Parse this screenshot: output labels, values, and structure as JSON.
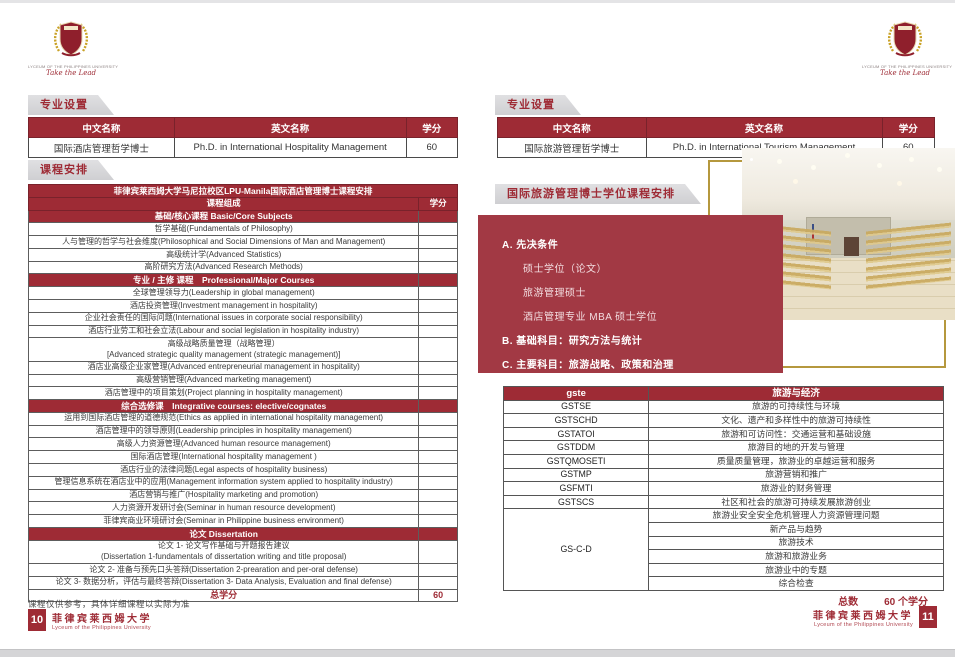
{
  "colors": {
    "primary_red": "#9e2b35",
    "box_red": "#a23944",
    "gold_frame": "#b5983e",
    "tab_gray": "#d9d9db"
  },
  "left_page": {
    "logo": {
      "caption": "LYCEUM OF THE PHILIPPINES UNIVERSITY",
      "tagline": "Take the Lead"
    },
    "program_section": {
      "tab": "专业设置",
      "headers": [
        "中文名称",
        "英文名称",
        "学分"
      ],
      "row": {
        "cn": "国际酒店管理哲学博士",
        "en": "Ph.D. in International Hospitality Management",
        "credits": "60"
      }
    },
    "course_section": {
      "tab": "课程安排",
      "title": "菲律宾莱西姆大学马尼拉校区LPU-Manila国际酒店管理博士课程安排",
      "col_headers": [
        "课程组成",
        "学分"
      ],
      "rows": [
        {
          "type": "section",
          "text": "基础/核心课程 Basic/Core Subjects"
        },
        {
          "type": "course",
          "text": "哲学基础(Fundamentals of Philosophy)"
        },
        {
          "type": "course",
          "text": "人与管理的哲学与社会维度(Philosophical and Social Dimensions of Man and Management)"
        },
        {
          "type": "course",
          "text": "高级统计学(Advanced Statistics)"
        },
        {
          "type": "course",
          "text": "高阶研究方法(Advanced Research Methods)"
        },
        {
          "type": "section",
          "text": "专业 / 主修 课程　Professional/Major Courses"
        },
        {
          "type": "course",
          "text": "全球管理领导力(Leadership in global management)"
        },
        {
          "type": "course",
          "text": "酒店投资管理(Investment management in hospitality)"
        },
        {
          "type": "course",
          "text": "企业社会责任的国际问题(International issues in corporate social responsibility)"
        },
        {
          "type": "course",
          "text": "酒店行业劳工和社会立法(Labour and social legislation in hospitality industry)"
        },
        {
          "type": "course",
          "lines": [
            "高级战略质量管理（战略管理）",
            "[Advanced strategic quality management (strategic management)]"
          ]
        },
        {
          "type": "course",
          "text": "酒店业高级企业家管理(Advanced entrepreneurial management in hospitality)"
        },
        {
          "type": "course",
          "text": "高级营销管理(Advanced marketing management)"
        },
        {
          "type": "course",
          "text": "酒店管理中的项目策划(Project planning in hospitality management)"
        },
        {
          "type": "section",
          "text": "综合选修课　Integrative courses: elective/cognates"
        },
        {
          "type": "course",
          "text": "运用到国际酒店管理的道德规范(Ethics as applied in international hospitality management)"
        },
        {
          "type": "course",
          "text": "酒店管理中的领导原则(Leadership principles in hospitality management)"
        },
        {
          "type": "course",
          "text": "高级人力资源管理(Advanced human resource management)"
        },
        {
          "type": "course",
          "text": "国际酒店管理(International hospitality management )"
        },
        {
          "type": "course",
          "text": "酒店行业的法律问题(Legal aspects of hospitality business)"
        },
        {
          "type": "course",
          "text": "管理信息系统在酒店业中的应用(Management information system applied to hospitality industry)"
        },
        {
          "type": "course",
          "text": "酒店营销与推广(Hospitality marketing and promotion)"
        },
        {
          "type": "course",
          "text": "人力资源开发研讨会(Seminar in human resource development)"
        },
        {
          "type": "course",
          "text": "菲律宾商业环境研讨会(Seminar in Philippine business environment)"
        },
        {
          "type": "section",
          "text": "论文 Dissertation"
        },
        {
          "type": "course",
          "lines": [
            "论文 1- 论文写作基础与开题报告建议",
            "(Dissertation 1-fundamentals of dissertation writing and title proposal)"
          ]
        },
        {
          "type": "course",
          "text": "论文 2- 准备与预先口头答辩(Dissertation 2-prearation and per-oral defense)"
        },
        {
          "type": "course",
          "text": "论文 3- 数据分析，评估与最终答辩(Dissertation 3- Data Analysis, Evaluation and final defense)"
        },
        {
          "type": "total",
          "text": "总学分",
          "credit": "60"
        }
      ]
    },
    "note": "课程仅供参考，具体详细课程以实际为准",
    "footer": {
      "page_number": "10",
      "university_cn": "菲律宾莱西姆大学",
      "university_en": "Lyceum of the Philippines University"
    }
  },
  "right_page": {
    "logo": {
      "caption": "LYCEUM OF THE PHILIPPINES UNIVERSITY",
      "tagline": "Take the Lead"
    },
    "program_section": {
      "tab": "专业设置",
      "headers": [
        "中文名称",
        "英文名称",
        "学分"
      ],
      "row": {
        "cn": "国际旅游管理哲学博士",
        "en": "Ph.D. in International Tourism Management",
        "credits": "60"
      }
    },
    "course_header_tab": "国际旅游管理博士学位课程安排",
    "requirements": {
      "a_title": "A. 先决条件",
      "a_items": [
        "硕士学位（论文）",
        "旅游管理硕士",
        "酒店管理专业 MBA 硕士学位"
      ],
      "b_title": "B. 基础科目：研究方法与统计",
      "c_title": "C. 主要科目：旅游战略、政策和治理"
    },
    "course_table": {
      "headers": [
        "gste",
        "旅游与经济"
      ],
      "rows": [
        {
          "code": "GSTSE",
          "topic": "旅游的可持续性与环境"
        },
        {
          "code": "GSTSCHD",
          "topic": "文化、遗产和多样性中的旅游可持续性"
        },
        {
          "code": "GSTATOI",
          "topic": "旅游和可访问性：交通运营和基础设施"
        },
        {
          "code": "GSTDDM",
          "topic": "旅游目的地的开发与管理"
        },
        {
          "code": "GSTQMOSETI",
          "topic": "质量质量管理，旅游业的卓越运营和服务"
        },
        {
          "code": "GSTMP",
          "topic": "旅游营销和推广"
        },
        {
          "code": "GSFMTI",
          "topic": "旅游业的财务管理"
        },
        {
          "code": "GSTSCS",
          "topic": "社区和社会的旅游可持续发展旅游创业"
        },
        {
          "code": "GS-C-D",
          "rowspan": 6,
          "topic": "旅游业安全安全危机管理人力资源管理问题"
        },
        {
          "topic": "新产品与趋势"
        },
        {
          "topic": "旅游技术"
        },
        {
          "topic": "旅游和旅游业务"
        },
        {
          "topic": "旅游业中的专题"
        },
        {
          "topic": "综合检查"
        }
      ],
      "total_label": "总数",
      "total_value": "60 个学分"
    },
    "footer": {
      "page_number": "11",
      "university_cn": "菲律宾莱西姆大学",
      "university_en": "Lyceum of the Philippines University"
    }
  }
}
